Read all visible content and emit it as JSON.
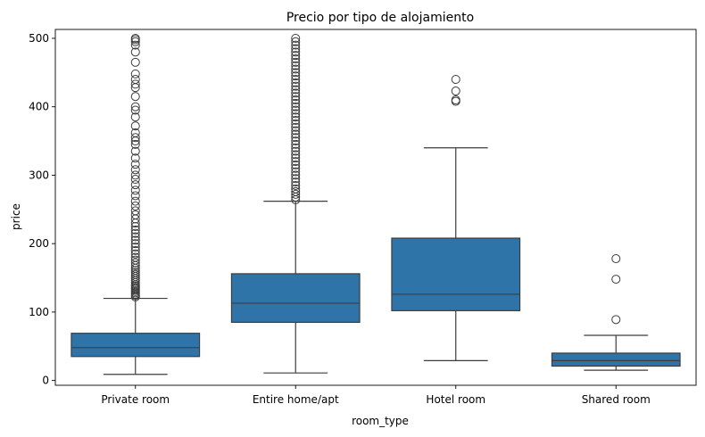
{
  "chart_data": {
    "type": "box",
    "title": "Precio por tipo de alojamiento",
    "xlabel": "room_type",
    "ylabel": "price",
    "ylim": [
      -7,
      513
    ],
    "yticks": [
      0,
      100,
      200,
      300,
      400,
      500
    ],
    "grid": false,
    "legend": "none",
    "color": "#2e74a8",
    "categories": [
      "Private room",
      "Entire home/apt",
      "Hotel room",
      "Shared room"
    ],
    "boxes": [
      {
        "category": "Private room",
        "whisker_low": 9,
        "q1": 35,
        "median": 48,
        "q3": 69,
        "whisker_high": 120,
        "outliers": [
          122,
          124,
          126,
          128,
          130,
          132,
          134,
          136,
          138,
          140,
          143,
          146,
          149,
          152,
          155,
          158,
          161,
          164,
          168,
          172,
          176,
          180,
          185,
          190,
          195,
          200,
          205,
          210,
          215,
          220,
          225,
          230,
          236,
          242,
          248,
          255,
          262,
          270,
          278,
          286,
          294,
          300,
          308,
          316,
          325,
          335,
          345,
          350,
          355,
          362,
          372,
          385,
          395,
          400,
          415,
          428,
          433,
          440,
          448,
          465,
          480,
          490,
          495,
          498,
          500
        ]
      },
      {
        "category": "Entire home/apt",
        "whisker_low": 11,
        "q1": 85,
        "median": 113,
        "q3": 156,
        "whisker_high": 262,
        "outliers": [
          264,
          268,
          272,
          276,
          280,
          285,
          290,
          295,
          300,
          305,
          310,
          315,
          320,
          325,
          330,
          335,
          340,
          345,
          350,
          355,
          360,
          365,
          370,
          375,
          380,
          385,
          390,
          395,
          400,
          405,
          410,
          415,
          420,
          425,
          430,
          435,
          440,
          445,
          450,
          455,
          460,
          465,
          470,
          475,
          480,
          485,
          490,
          495,
          500
        ]
      },
      {
        "category": "Hotel room",
        "whisker_low": 29,
        "q1": 102,
        "median": 126,
        "q3": 208,
        "whisker_high": 340,
        "outliers": [
          408,
          410,
          423,
          440
        ]
      },
      {
        "category": "Shared room",
        "whisker_low": 15,
        "q1": 21,
        "median": 29,
        "q3": 40,
        "whisker_high": 66,
        "outliers": [
          89,
          148,
          178
        ]
      }
    ]
  }
}
